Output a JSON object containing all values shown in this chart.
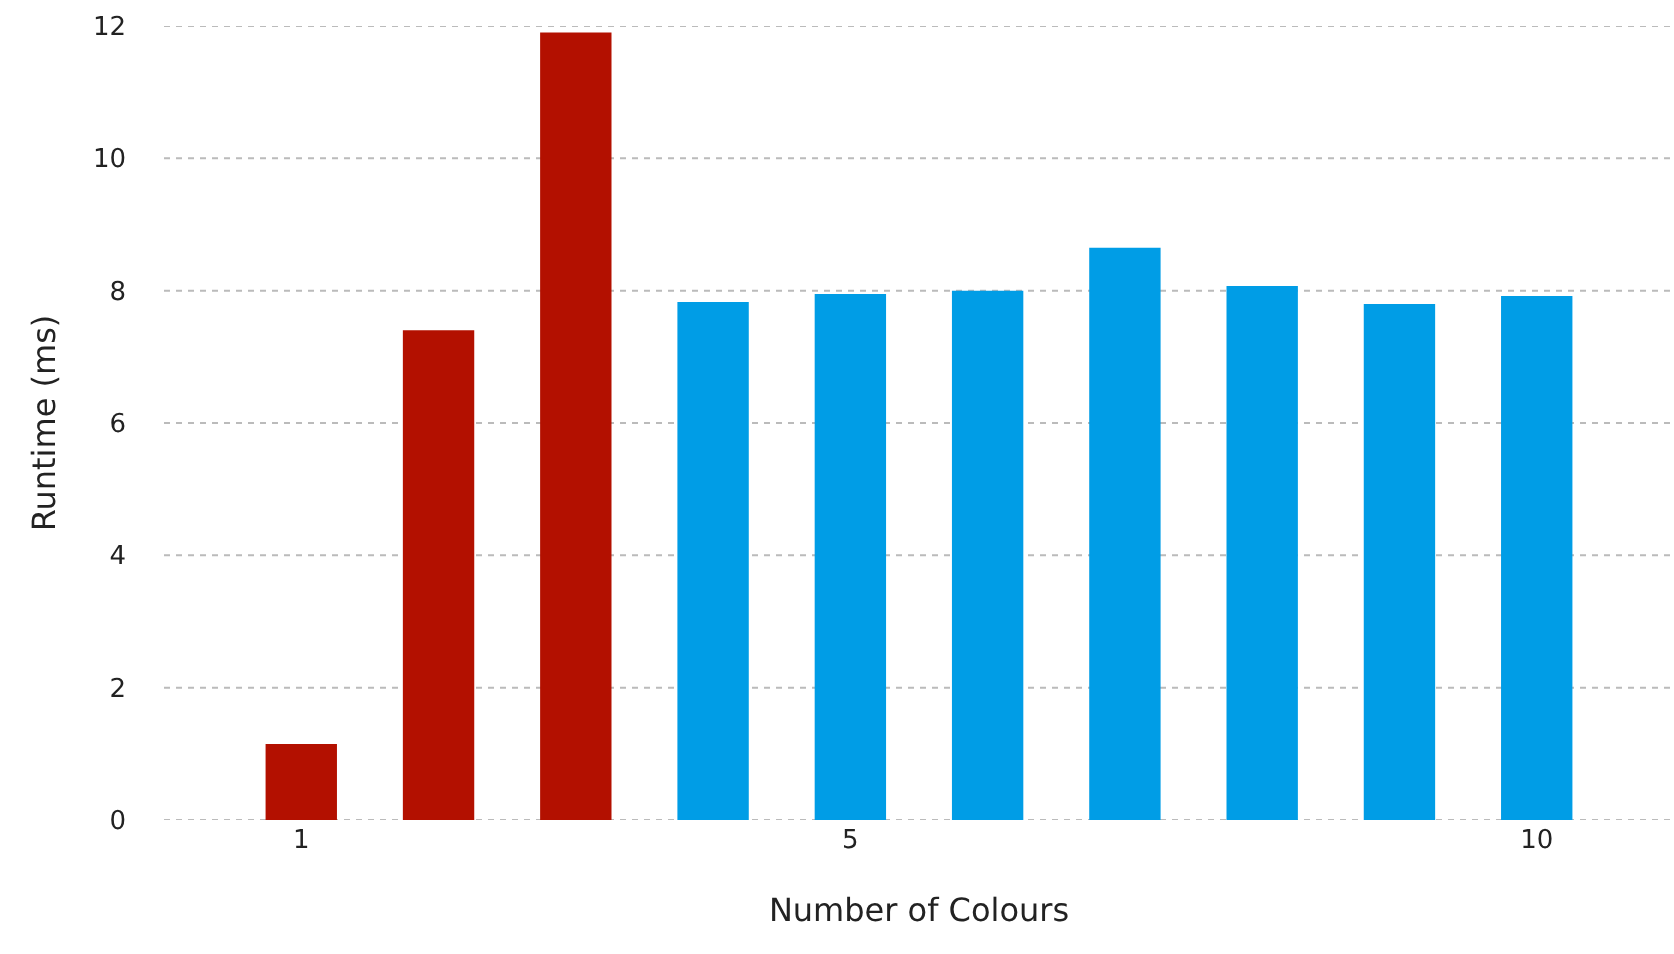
{
  "chart_data": {
    "type": "bar",
    "xlabel": "Number of Colours",
    "ylabel": "Runtime (ms)",
    "x": [
      1,
      2,
      3,
      4,
      5,
      6,
      7,
      8,
      9,
      10
    ],
    "values": [
      1.15,
      7.4,
      11.9,
      7.83,
      7.95,
      8.0,
      8.65,
      8.07,
      7.8,
      7.92
    ],
    "colors": [
      "#b31000",
      "#b31000",
      "#b31000",
      "#009de6",
      "#009de6",
      "#009de6",
      "#009de6",
      "#009de6",
      "#009de6",
      "#009de6"
    ],
    "xlim": [
      0,
      11
    ],
    "xticks": [
      1,
      5,
      10
    ],
    "ylim": [
      0,
      12
    ],
    "yticks": [
      0,
      2,
      4,
      6,
      8,
      10,
      12
    ],
    "grid": "y"
  }
}
